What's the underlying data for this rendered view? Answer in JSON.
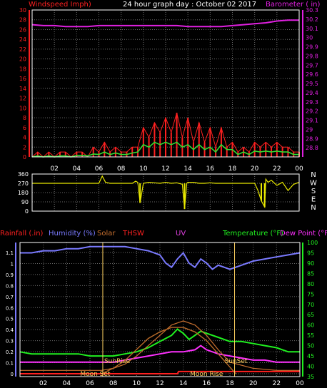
{
  "colors": {
    "background": "#000000",
    "axis": "#ffffff",
    "grid": "#6a6a6a",
    "windspeed": "#ff2020",
    "windgust_avg": "#30e030",
    "barometer": "#e020e0",
    "direction": "#e8e800",
    "humidity": "#7a7aff",
    "solar": "#c87030",
    "thsw": "#ff2020",
    "uv": "#e040e0",
    "temperature": "#20f020",
    "dewpoint": "#ff30ff",
    "rainfall": "#ff2020",
    "sun_marker": "#ffd060",
    "moon_marker": "#ffd060"
  },
  "chart_data": [
    {
      "type": "line",
      "title": "24 hour graph day : October 02 2017",
      "ylabel": "Windspeed Imph)",
      "y2label": "Barometer ( in)",
      "xticks": [
        "02",
        "04",
        "06",
        "08",
        "10",
        "12",
        "14",
        "16",
        "18",
        "20",
        "22",
        "00"
      ],
      "x_range": [
        0,
        24
      ],
      "ylim": [
        0,
        30
      ],
      "yticks": [
        0,
        2,
        4,
        6,
        8,
        10,
        12,
        14,
        16,
        18,
        20,
        22,
        24,
        26,
        28,
        30
      ],
      "y2lim": [
        28.7,
        30.3
      ],
      "y2ticks": [
        "28.8",
        "28.9",
        "29",
        "29.1",
        "29.2",
        "29.3",
        "29.4",
        "29.5",
        "29.6",
        "29.7",
        "29.8",
        "29.9",
        "30",
        "30.1",
        "30.2",
        "30.3"
      ],
      "grid": true,
      "series": [
        {
          "axis": "y2",
          "x": [
            0,
            1,
            2,
            3,
            4,
            5,
            6,
            7,
            8,
            9,
            10,
            11,
            12,
            13,
            14,
            15,
            16,
            17,
            18,
            19,
            20,
            21,
            22,
            23,
            24
          ],
          "values": [
            30.14,
            30.13,
            30.13,
            30.12,
            30.12,
            30.12,
            30.13,
            30.13,
            30.13,
            30.13,
            30.13,
            30.13,
            30.13,
            30.13,
            30.12,
            30.12,
            30.12,
            30.12,
            30.13,
            30.14,
            30.15,
            30.16,
            30.18,
            30.19,
            30.19
          ]
        },
        {
          "axis": "y",
          "x": [
            0,
            0.5,
            1,
            1.5,
            2,
            2.5,
            3,
            3.5,
            4,
            4.5,
            5,
            5.5,
            6,
            6.5,
            7,
            7.5,
            8,
            8.5,
            9,
            9.5,
            10,
            10.5,
            11,
            11.5,
            12,
            12.5,
            13,
            13.5,
            14,
            14.5,
            15,
            15.5,
            16,
            16.5,
            17,
            17.5,
            18,
            18.5,
            19,
            19.5,
            20,
            20.5,
            21,
            21.5,
            22,
            22.5,
            23,
            23.5,
            24
          ],
          "values": [
            0,
            1,
            0,
            1,
            0,
            1,
            1,
            0,
            1,
            1,
            0,
            2,
            1,
            3,
            1,
            2,
            1,
            1,
            2,
            2,
            6,
            4,
            7,
            5,
            8,
            5,
            9,
            4,
            8,
            3,
            7,
            3,
            6,
            2,
            6,
            2,
            3,
            1,
            2,
            1,
            3,
            2,
            3,
            2,
            3,
            2,
            2,
            1,
            1
          ]
        },
        {
          "axis": "y",
          "x": [
            0,
            0.5,
            1,
            1.5,
            2,
            2.5,
            3,
            3.5,
            4,
            4.5,
            5,
            5.5,
            6,
            6.5,
            7,
            7.5,
            8,
            8.5,
            9,
            9.5,
            10,
            10.5,
            11,
            11.5,
            12,
            12.5,
            13,
            13.5,
            14,
            14.5,
            15,
            15.5,
            16,
            16.5,
            17,
            17.5,
            18,
            18.5,
            19,
            19.5,
            20,
            20.5,
            21,
            21.5,
            22,
            22.5,
            23,
            23.5,
            24
          ],
          "values": [
            0,
            0.2,
            0,
            0.2,
            0,
            0.2,
            0.2,
            0,
            0.3,
            0.3,
            0.2,
            0.6,
            0.5,
            1,
            0.5,
            0.8,
            0.5,
            0.5,
            0.8,
            1,
            2.5,
            2,
            3,
            2.5,
            3,
            2.5,
            3,
            2,
            2.5,
            1.5,
            2.5,
            1.5,
            2,
            1,
            2.5,
            1.5,
            1.5,
            0.5,
            1,
            0.5,
            1.2,
            1,
            1.2,
            1,
            1.2,
            1,
            1,
            0.5,
            0.5
          ]
        }
      ]
    },
    {
      "type": "scatter",
      "xticks": [
        "02",
        "04",
        "06",
        "08",
        "10",
        "12",
        "14",
        "16",
        "18",
        "20",
        "22",
        "00"
      ],
      "x_range": [
        0,
        24
      ],
      "ylim": [
        0,
        360
      ],
      "yticks": [
        "0",
        "90",
        "180",
        "270",
        "360"
      ],
      "y2ticks": [
        "N",
        "W",
        "S",
        "E",
        "N"
      ],
      "series": [
        {
          "x": [
            0,
            1,
            2,
            3,
            4,
            5,
            6,
            6.3,
            6.6,
            7,
            8,
            9,
            9.3,
            9.5,
            9.7,
            10,
            10.5,
            11,
            11.5,
            12,
            12.5,
            13,
            13.5,
            13.7,
            13.9,
            14,
            14.5,
            15,
            15.5,
            16,
            16.5,
            17,
            17.5,
            18,
            18.5,
            19,
            19.5,
            20,
            20.3,
            20.6,
            20.9,
            21,
            21.2,
            21.5,
            22,
            22.5,
            23,
            23.5,
            24
          ],
          "values": [
            270,
            270,
            270,
            270,
            270,
            270,
            270,
            340,
            280,
            270,
            270,
            270,
            290,
            280,
            80,
            270,
            280,
            275,
            270,
            280,
            270,
            275,
            260,
            20,
            270,
            280,
            280,
            270,
            270,
            275,
            270,
            270,
            270,
            270,
            270,
            270,
            270,
            270,
            200,
            100,
            40,
            310,
            280,
            300,
            250,
            280,
            200,
            260,
            280
          ]
        }
      ]
    },
    {
      "type": "line",
      "xticks": [
        "02",
        "04",
        "06",
        "08",
        "10",
        "12",
        "14",
        "16",
        "18",
        "20",
        "22",
        "00"
      ],
      "x_range": [
        0,
        24
      ],
      "ylim": [
        0,
        1.0
      ],
      "yticks": [
        "0",
        "0.1",
        "0.2",
        "0.3",
        "0.4",
        "0.5",
        "0.6",
        "0.7",
        "0.8",
        "0.9",
        "1",
        "1.1"
      ],
      "y2lim": [
        35,
        100
      ],
      "y2ticks": [
        "35",
        "40",
        "45",
        "50",
        "55",
        "60",
        "65",
        "70",
        "75",
        "80",
        "85",
        "90",
        "95",
        "100"
      ],
      "grid": true,
      "legend": [
        {
          "label": "Rainfall (.in)",
          "color": "#ff2020"
        },
        {
          "label": "Humidity (%)",
          "color": "#7a7aff"
        },
        {
          "label": "Solar",
          "color": "#c87030"
        },
        {
          "label": "THSW",
          "color": "#ff2020"
        },
        {
          "label": "UV",
          "color": "#e040e0"
        },
        {
          "label": "Temperature (°F)",
          "color": "#20f020"
        },
        {
          "label": "Dew Point (°F",
          "color": "#ff30ff"
        }
      ],
      "annotations": [
        "SunRise",
        "SunSet",
        "Moon Set",
        "Moon Rise"
      ],
      "series": [
        {
          "name": "Humidity (%)",
          "axis": "y2",
          "x": [
            0,
            1,
            2,
            3,
            4,
            5,
            6,
            7,
            8,
            9,
            10,
            11,
            12,
            12.5,
            13,
            13.5,
            14,
            14.5,
            15,
            15.5,
            16,
            16.5,
            17,
            18,
            19,
            20,
            21,
            22,
            23,
            24
          ],
          "values": [
            95,
            95,
            96,
            96,
            97,
            97,
            98,
            98,
            98,
            98,
            97,
            96,
            94,
            90,
            88,
            92,
            95,
            90,
            88,
            92,
            90,
            87,
            89,
            87,
            89,
            91,
            92,
            93,
            94,
            95
          ]
        },
        {
          "name": "Temperature (°F)",
          "axis": "y2",
          "x": [
            0,
            1,
            2,
            3,
            4,
            5,
            6,
            7,
            8,
            9,
            10,
            11,
            12,
            13,
            13.5,
            14,
            14.5,
            15,
            15.5,
            16,
            17,
            18,
            19,
            20,
            21,
            22,
            23,
            24
          ],
          "values": [
            47,
            46,
            46,
            46,
            46,
            46,
            45,
            45,
            45,
            46,
            47,
            49,
            52,
            55,
            58,
            56,
            53,
            55,
            57,
            56,
            54,
            52,
            52,
            51,
            50,
            49,
            47,
            47
          ]
        },
        {
          "name": "Dew Point (°F",
          "axis": "y2",
          "x": [
            0,
            1,
            2,
            3,
            4,
            5,
            6,
            7,
            8,
            9,
            10,
            11,
            12,
            13,
            14,
            15,
            15.5,
            16,
            17,
            18,
            19,
            20,
            21,
            22,
            23,
            24
          ],
          "values": [
            42,
            42,
            42,
            42,
            42,
            42,
            42,
            42,
            42,
            43,
            44,
            45,
            46,
            47,
            47,
            48,
            50,
            48,
            46,
            45,
            44,
            43,
            43,
            42,
            42,
            42
          ]
        },
        {
          "name": "THSW",
          "axis": "y2",
          "x": [
            0,
            2,
            4,
            6,
            7,
            8,
            9,
            10,
            11,
            12,
            13,
            14,
            15,
            16,
            17,
            18,
            20,
            22,
            24
          ],
          "values": [
            38,
            38,
            38,
            38,
            38,
            39,
            41,
            45,
            50,
            55,
            60,
            62,
            60,
            55,
            48,
            42,
            39,
            38,
            38
          ]
        },
        {
          "name": "Solar",
          "axis": "y",
          "x": [
            7,
            8,
            9,
            10,
            11,
            12,
            13,
            14,
            15,
            16,
            17,
            18,
            18.5
          ],
          "values": [
            0,
            0.05,
            0.12,
            0.22,
            0.32,
            0.38,
            0.42,
            0.42,
            0.38,
            0.3,
            0.18,
            0.06,
            0
          ]
        },
        {
          "name": "Rainfall (.in)",
          "axis": "y",
          "x": [
            0,
            13.5,
            13.6,
            24
          ],
          "values": [
            0,
            0,
            0.02,
            0.02
          ]
        }
      ]
    }
  ]
}
